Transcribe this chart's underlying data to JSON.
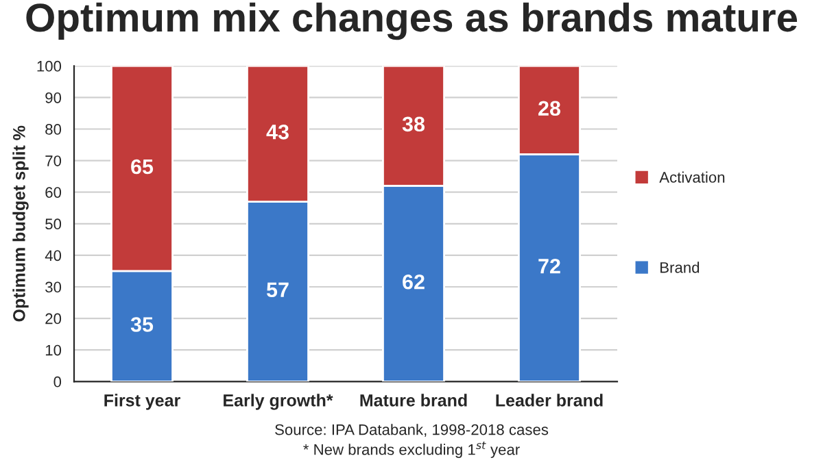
{
  "chart_data": {
    "type": "bar",
    "title": "Optimum mix changes as brands mature",
    "ylabel": "Optimum budget split %",
    "categories": [
      "First year",
      "Early growth*",
      "Mature brand",
      "Leader brand"
    ],
    "series": [
      {
        "name": "Brand",
        "color": "#3b78c8",
        "values": [
          35,
          57,
          62,
          72
        ]
      },
      {
        "name": "Activation",
        "color": "#c23b3a",
        "values": [
          65,
          43,
          38,
          28
        ]
      }
    ],
    "stacked": true,
    "data_labels": true,
    "ylim": [
      0,
      100
    ],
    "yticks": [
      0,
      10,
      20,
      30,
      40,
      50,
      60,
      70,
      80,
      90,
      100
    ],
    "grid": "y",
    "legend": "right",
    "annotations": [
      "Source: IPA Databank, 1998-2018 cases",
      "* New brands excluding 1$^{st}$ year"
    ]
  }
}
